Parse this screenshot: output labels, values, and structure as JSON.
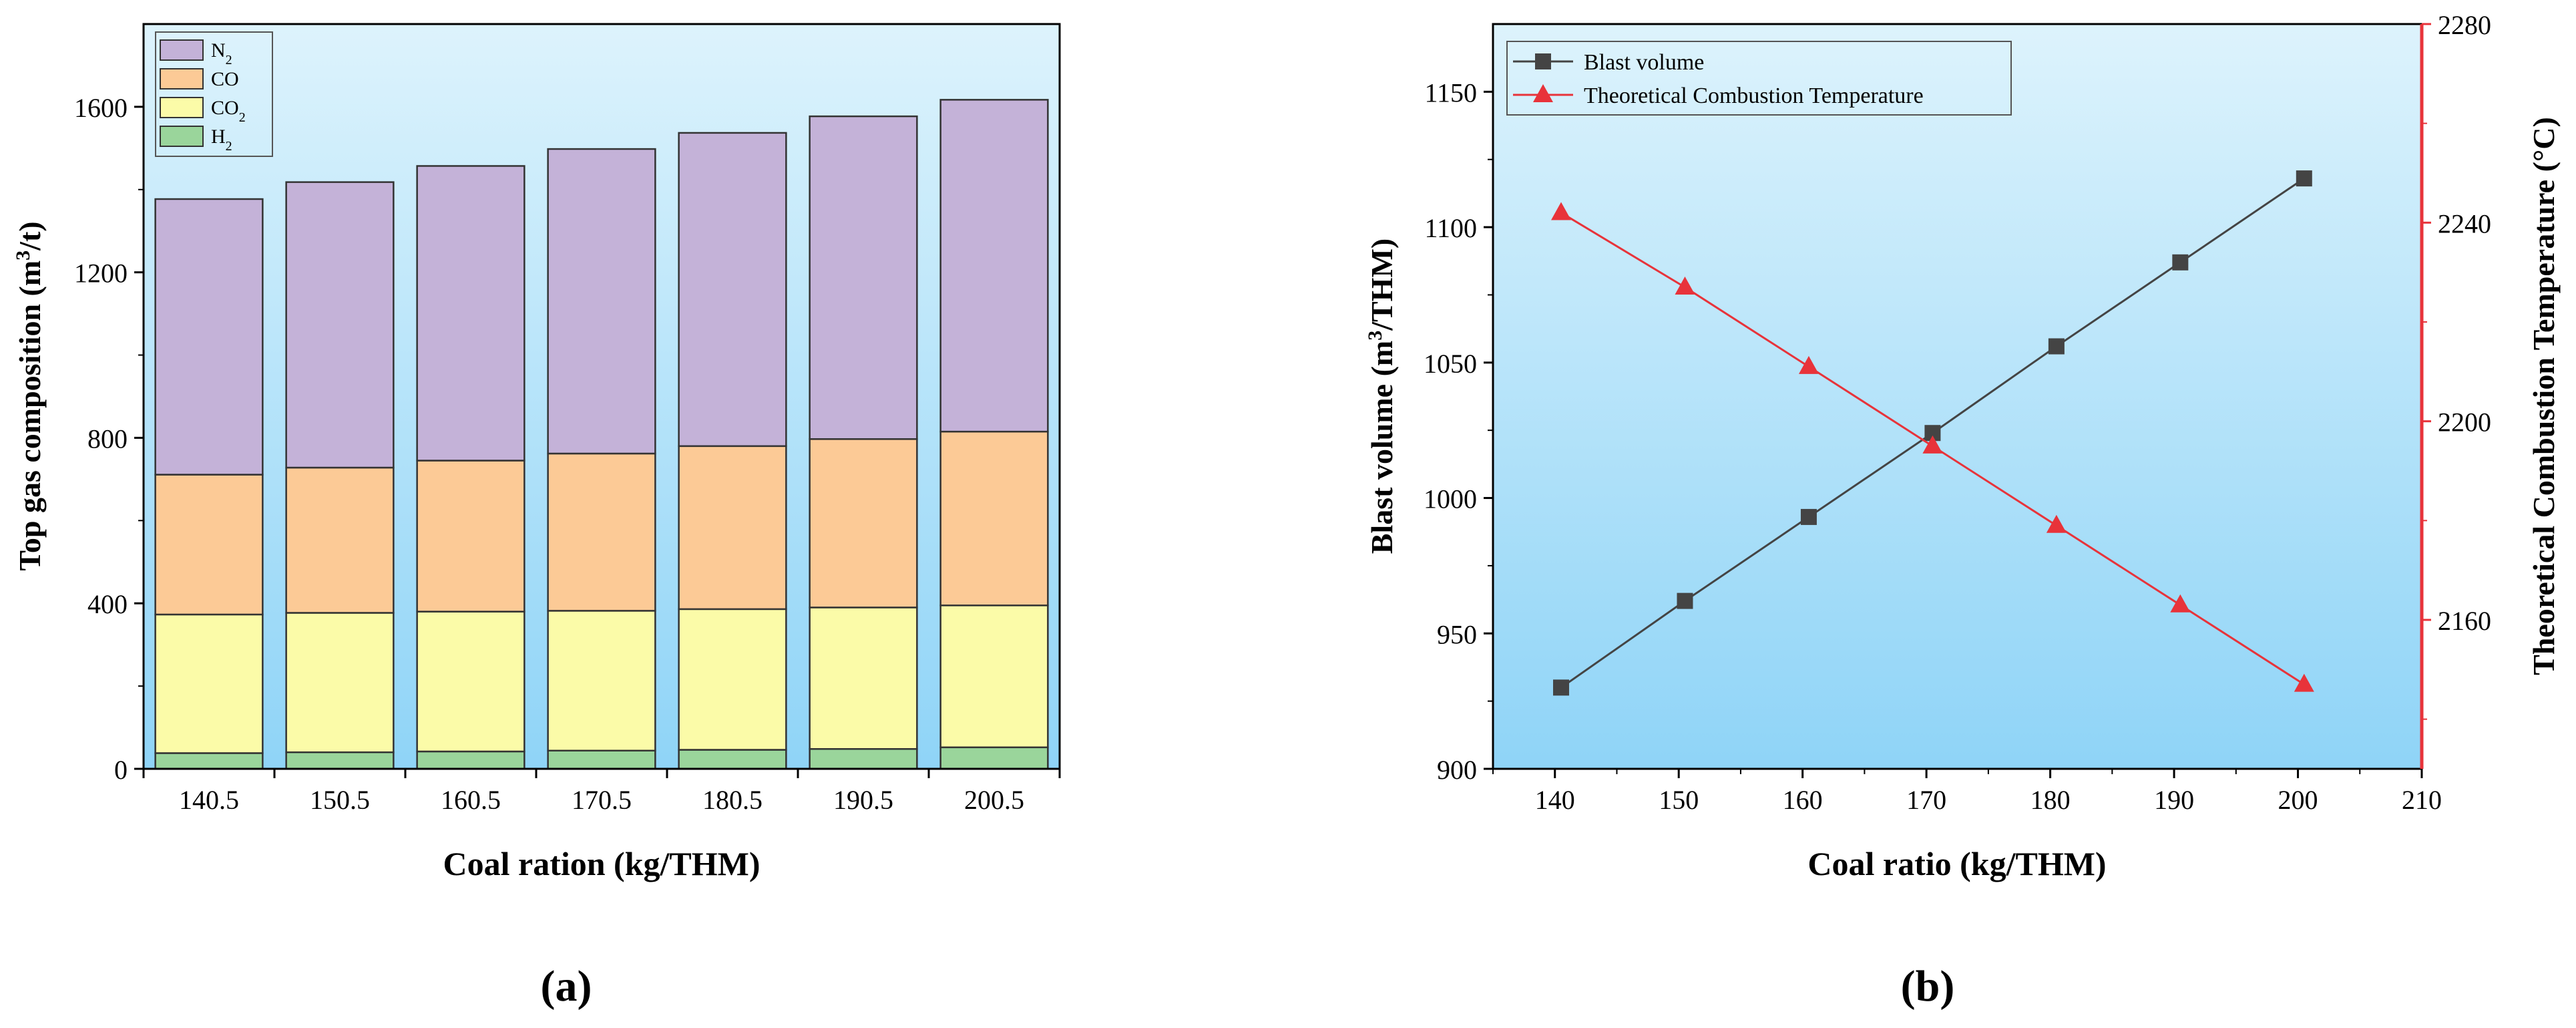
{
  "colors": {
    "n2": "#c4b2d8",
    "co": "#fcca96",
    "co2": "#fbfba8",
    "h2": "#9ad59b",
    "blast": "#444444",
    "tct": "#e8333a",
    "right_axis": "#e8333a",
    "bg_top": "#ddf3fc",
    "bg_bottom": "#8fd4f7"
  },
  "subplot_labels": {
    "a": "(a)",
    "b": "(b)"
  },
  "chart_data": [
    {
      "type": "bar",
      "stacked": true,
      "title": "",
      "xlabel": "Coal ration (kg/THM)",
      "ylabel": "Top gas composition (m",
      "ylabel_sup": "3",
      "ylabel_tail": "/t)",
      "ylim": [
        0,
        1800
      ],
      "yticks": [
        0,
        400,
        800,
        1200,
        1600
      ],
      "ytick_labels": [
        "0",
        "400",
        "800",
        "1200",
        "1600"
      ],
      "categories": [
        "140.5",
        "150.5",
        "160.5",
        "170.5",
        "180.5",
        "190.5",
        "200.5"
      ],
      "legend_position": "top-left",
      "series": [
        {
          "name": "H2",
          "label": "H",
          "sub": "2",
          "color_key": "h2",
          "values": [
            38,
            40,
            42,
            44,
            46,
            48,
            52
          ]
        },
        {
          "name": "CO2",
          "label": "CO",
          "sub": "2",
          "color_key": "co2",
          "values": [
            335,
            337,
            338,
            338,
            340,
            342,
            343
          ]
        },
        {
          "name": "CO",
          "label": "CO",
          "sub": "",
          "color_key": "co",
          "values": [
            338,
            351,
            365,
            380,
            394,
            407,
            420
          ]
        },
        {
          "name": "N2",
          "label": "N",
          "sub": "2",
          "color_key": "n2",
          "values": [
            666,
            690,
            712,
            736,
            757,
            780,
            802
          ]
        }
      ]
    },
    {
      "type": "line",
      "title": "",
      "xlabel": "Coal ratio (kg/THM)",
      "ylabel": "Blast volume (m",
      "ylabel_sup": "3",
      "ylabel_tail": "/THM)",
      "y2label": "Theoretical Combustion Temperature (°C)",
      "xlim": [
        135,
        210
      ],
      "xticks": [
        140,
        150,
        160,
        170,
        180,
        190,
        200,
        210
      ],
      "xtick_labels": [
        "140",
        "150",
        "160",
        "170",
        "180",
        "190",
        "200",
        "210"
      ],
      "ylim": [
        900,
        1175
      ],
      "yticks": [
        900,
        950,
        1000,
        1050,
        1100,
        1150
      ],
      "ytick_labels": [
        "900",
        "950",
        "1000",
        "1050",
        "1100",
        "1150"
      ],
      "y2lim": [
        2130,
        2280
      ],
      "y2ticks": [
        2160,
        2200,
        2240,
        2280
      ],
      "y2tick_labels": [
        "2160",
        "2200",
        "2240",
        "2280"
      ],
      "legend_position": "top-left",
      "x": [
        140.5,
        150.5,
        160.5,
        170.5,
        180.5,
        190.5,
        200.5
      ],
      "series": [
        {
          "name": "Blast volume",
          "axis": "left",
          "marker": "square",
          "color_key": "blast",
          "values": [
            930,
            962,
            993,
            1024,
            1056,
            1087,
            1118
          ]
        },
        {
          "name": "Theoretical Combustion Temperature",
          "axis": "right",
          "marker": "triangle",
          "color_key": "tct",
          "values": [
            2242,
            2227,
            2211,
            2195,
            2179,
            2163,
            2147
          ]
        }
      ]
    }
  ]
}
